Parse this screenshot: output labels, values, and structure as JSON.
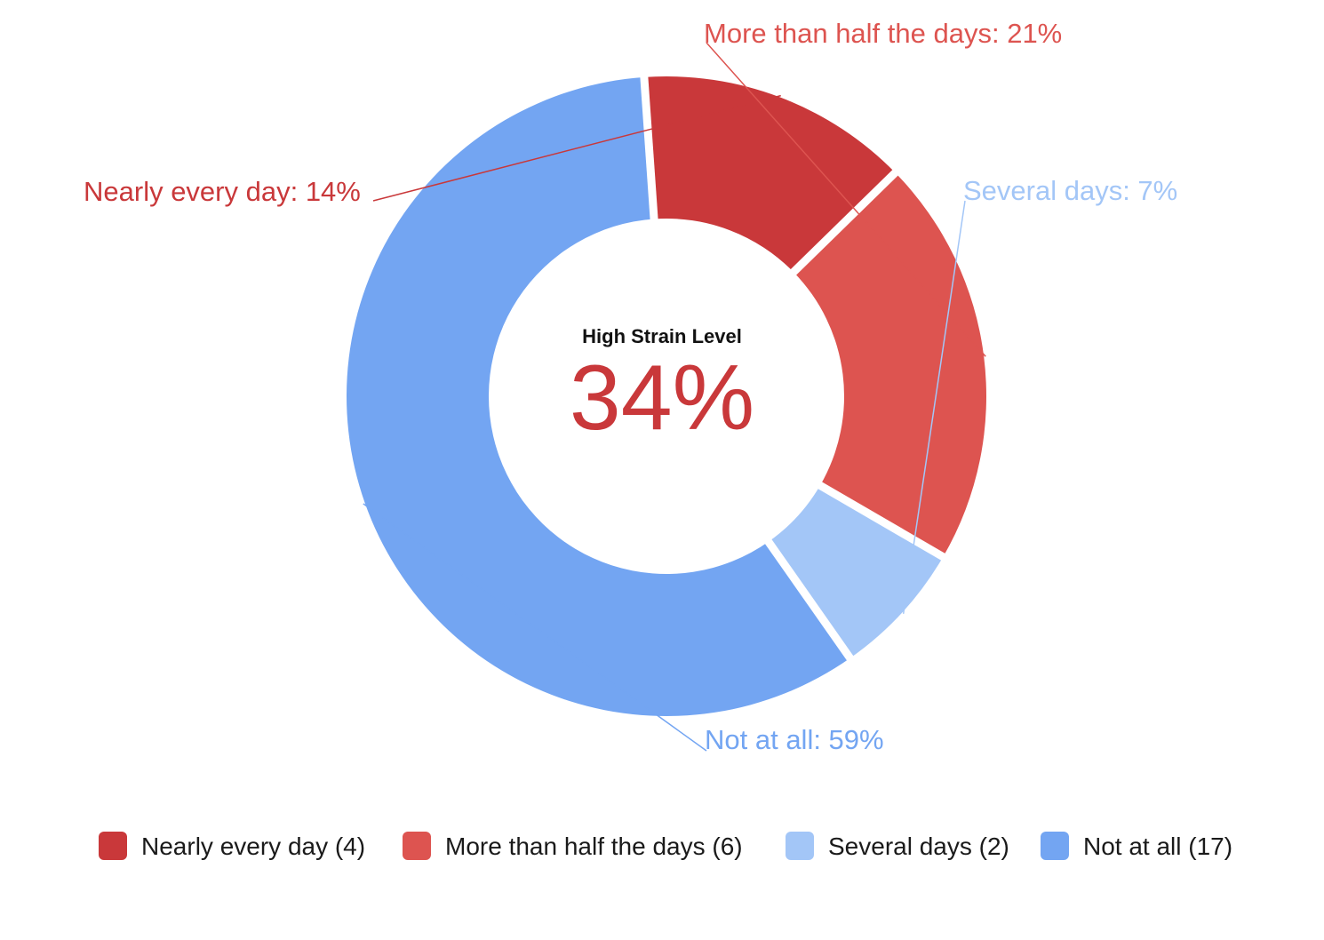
{
  "chart_data": {
    "type": "pie",
    "variant": "donut",
    "start_angle_deg": -94,
    "slice_gap": "white separators between slices",
    "center": {
      "title": "High Strain Level",
      "value": "34%",
      "value_color": "#c9383a"
    },
    "slices": [
      {
        "name": "Nearly every day",
        "count": 4,
        "percent": 14,
        "label": "Nearly every day: 14%",
        "legend_label": "Nearly every day (4)",
        "color": "#c9383a"
      },
      {
        "name": "More than half the days",
        "count": 6,
        "percent": 21,
        "label": "More than half the days: 21%",
        "legend_label": "More than half the days (6)",
        "color": "#dd5450"
      },
      {
        "name": "Several days",
        "count": 2,
        "percent": 7,
        "label": "Several days: 7%",
        "legend_label": "Several days (2)",
        "color": "#a3c6f7"
      },
      {
        "name": "Not at all",
        "count": 17,
        "percent": 59,
        "label": "Not at all: 59%",
        "legend_label": "Not at all (17)",
        "color": "#73a5f2"
      }
    ],
    "legend": {
      "position": "bottom"
    }
  }
}
